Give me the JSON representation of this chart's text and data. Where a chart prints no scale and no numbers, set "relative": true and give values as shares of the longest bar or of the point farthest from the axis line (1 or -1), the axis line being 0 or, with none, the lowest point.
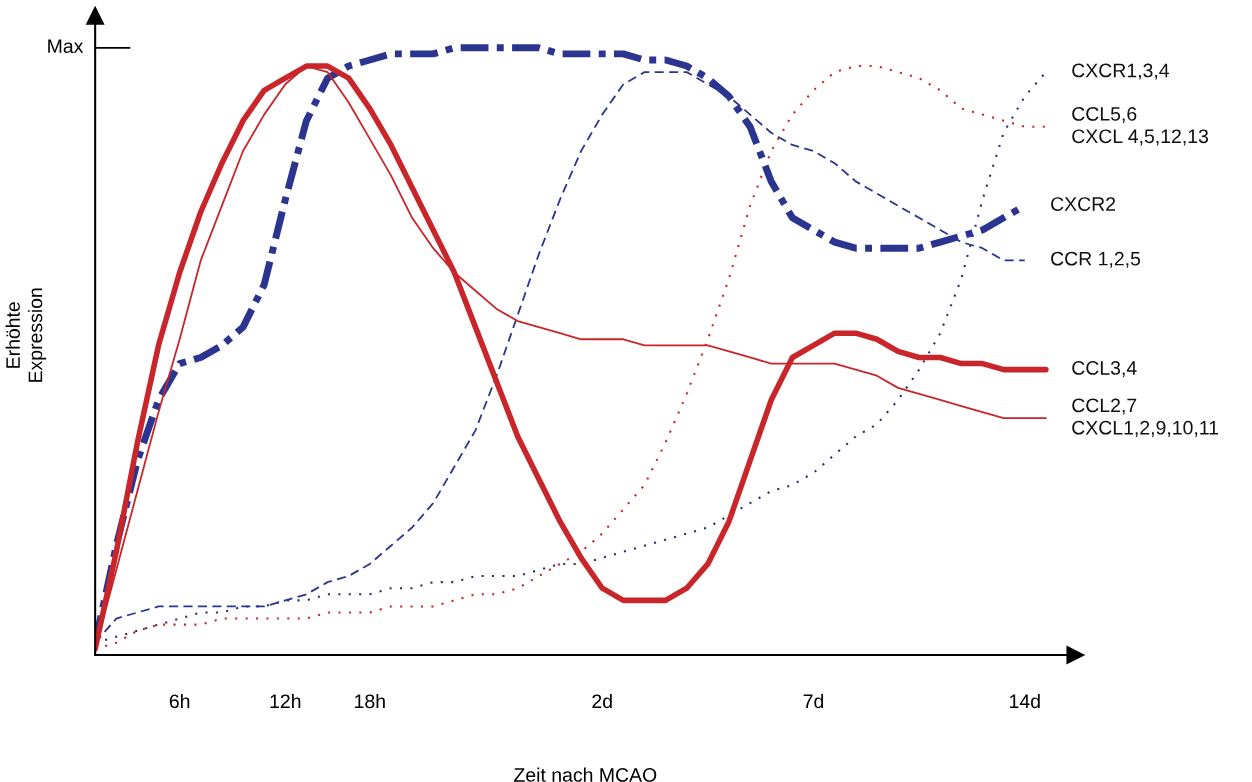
{
  "chart_data": {
    "type": "line",
    "relative": true,
    "xlabel": "Zeit nach MCAO",
    "ylabel": "Erhöhte\nExpression",
    "annotations": [
      "Max"
    ],
    "categories": [
      null,
      null,
      null,
      null,
      "6h",
      null,
      null,
      null,
      null,
      "12h",
      null,
      null,
      null,
      "18h",
      null,
      null,
      null,
      null,
      null,
      null,
      null,
      null,
      null,
      null,
      "2d",
      null,
      null,
      null,
      null,
      null,
      null,
      null,
      null,
      null,
      "7d",
      null,
      null,
      null,
      null,
      null,
      null,
      null,
      null,
      null,
      "14d",
      null
    ],
    "grid": false,
    "legend": false,
    "marker": "none",
    "series": [
      {
        "name": "CXCR1,3,4",
        "color": "#2b2f6b",
        "line_style": "dotted",
        "values": [
          0.02,
          0.03,
          0.04,
          0.05,
          0.06,
          0.07,
          0.07,
          0.08,
          0.08,
          0.09,
          0.09,
          0.1,
          0.1,
          0.1,
          0.11,
          0.11,
          0.12,
          0.12,
          0.13,
          0.13,
          0.13,
          0.14,
          0.15,
          0.15,
          0.16,
          0.17,
          0.18,
          0.19,
          0.2,
          0.21,
          0.23,
          0.25,
          0.27,
          0.28,
          0.3,
          0.33,
          0.36,
          0.38,
          0.42,
          0.47,
          0.53,
          0.62,
          0.75,
          0.86,
          0.92,
          0.96
        ]
      },
      {
        "name": "CCL5,6\nCXCL 4,5,12,13",
        "color": "#c8262b",
        "line_style": "dotted",
        "values": [
          0.01,
          0.02,
          0.04,
          0.05,
          0.05,
          0.05,
          0.06,
          0.06,
          0.06,
          0.06,
          0.06,
          0.07,
          0.07,
          0.07,
          0.08,
          0.08,
          0.08,
          0.09,
          0.1,
          0.1,
          0.11,
          0.13,
          0.15,
          0.17,
          0.2,
          0.24,
          0.28,
          0.35,
          0.43,
          0.52,
          0.62,
          0.74,
          0.83,
          0.89,
          0.93,
          0.96,
          0.97,
          0.97,
          0.96,
          0.95,
          0.93,
          0.9,
          0.89,
          0.88,
          0.87,
          0.87
        ]
      },
      {
        "name": "CXCR2",
        "color": "#2b3590",
        "line_style": "dashdot",
        "values": [
          0.02,
          0.18,
          0.32,
          0.42,
          0.48,
          0.49,
          0.51,
          0.54,
          0.61,
          0.75,
          0.88,
          0.95,
          0.97,
          0.98,
          0.99,
          0.99,
          0.99,
          1.0,
          1.0,
          1.0,
          1.0,
          1.0,
          0.99,
          0.99,
          0.99,
          0.99,
          0.98,
          0.98,
          0.97,
          0.95,
          0.92,
          0.87,
          0.78,
          0.72,
          0.7,
          0.68,
          0.67,
          0.67,
          0.67,
          0.67,
          0.68,
          0.69,
          0.7,
          0.72,
          0.74,
          null
        ]
      },
      {
        "name": "CCR 1,2,5",
        "color": "#2b3590",
        "line_style": "dashed",
        "values": [
          0.02,
          0.06,
          0.07,
          0.08,
          0.08,
          0.08,
          0.08,
          0.08,
          0.08,
          0.09,
          0.1,
          0.12,
          0.13,
          0.15,
          0.18,
          0.21,
          0.25,
          0.31,
          0.37,
          0.46,
          0.56,
          0.66,
          0.75,
          0.83,
          0.89,
          0.94,
          0.96,
          0.96,
          0.96,
          0.94,
          0.92,
          0.89,
          0.86,
          0.84,
          0.83,
          0.81,
          0.78,
          0.76,
          0.74,
          0.72,
          0.7,
          0.68,
          0.67,
          0.65,
          0.65,
          null
        ]
      },
      {
        "name": "CCL3,4",
        "color": "#c8262b",
        "line_style": "solid",
        "values": [
          0.01,
          0.17,
          0.35,
          0.51,
          0.63,
          0.73,
          0.81,
          0.88,
          0.93,
          0.95,
          0.97,
          0.97,
          0.95,
          0.9,
          0.84,
          0.77,
          0.7,
          0.63,
          0.54,
          0.45,
          0.36,
          0.29,
          0.22,
          0.16,
          0.11,
          0.09,
          0.09,
          0.09,
          0.11,
          0.15,
          0.22,
          0.32,
          0.42,
          0.49,
          0.51,
          0.53,
          0.53,
          0.52,
          0.5,
          0.49,
          0.49,
          0.48,
          0.48,
          0.47,
          0.47,
          0.47
        ]
      },
      {
        "name": "CCL2,7\nCXCL1,2,9,10,11",
        "color": "#c8262b",
        "line_style": "solid",
        "values": [
          0.01,
          0.14,
          0.27,
          0.4,
          0.52,
          0.65,
          0.74,
          0.83,
          0.89,
          0.94,
          0.97,
          0.96,
          0.91,
          0.85,
          0.79,
          0.72,
          0.67,
          0.63,
          0.6,
          0.57,
          0.55,
          0.54,
          0.53,
          0.52,
          0.52,
          0.52,
          0.51,
          0.51,
          0.51,
          0.51,
          0.5,
          0.49,
          0.48,
          0.48,
          0.48,
          0.48,
          0.47,
          0.46,
          0.44,
          0.43,
          0.42,
          0.41,
          0.4,
          0.39,
          0.39,
          0.39
        ]
      }
    ]
  }
}
